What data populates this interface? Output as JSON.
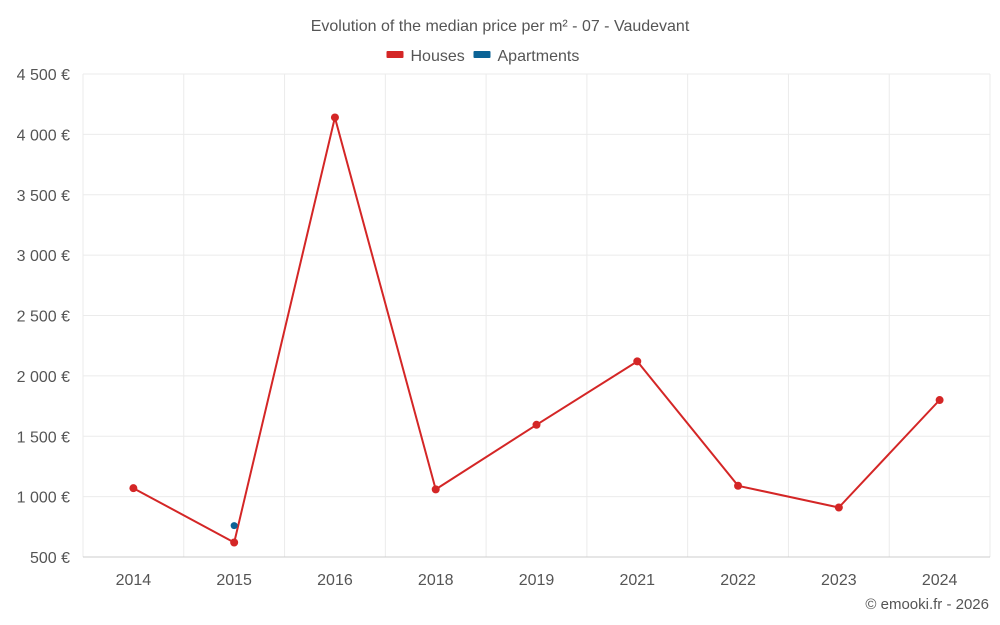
{
  "chart_data": {
    "type": "line",
    "title": "Evolution of the median price per m² - 07 - Vaudevant",
    "categories": [
      "2014",
      "2015",
      "2016",
      "2018",
      "2019",
      "2021",
      "2022",
      "2023",
      "2024"
    ],
    "series": [
      {
        "name": "Houses",
        "color": "#d42626",
        "values": [
          1070,
          620,
          4140,
          1060,
          1595,
          2120,
          1090,
          910,
          1800
        ]
      },
      {
        "name": "Apartments",
        "color": "#0b6396",
        "values": [
          null,
          760,
          null,
          null,
          null,
          null,
          null,
          null,
          null
        ]
      }
    ],
    "ylim": [
      500,
      4500
    ],
    "yticks": [
      500,
      1000,
      1500,
      2000,
      2500,
      3000,
      3500,
      4000,
      4500
    ],
    "ytick_labels": [
      "500 €",
      "1 000 €",
      "1 500 €",
      "2 000 €",
      "2 500 €",
      "3 000 €",
      "3 500 €",
      "4 000 €",
      "4 500 €"
    ],
    "xlabel": "",
    "ylabel": "",
    "grid": true,
    "legend_position": "top-center"
  },
  "credit": "© emooki.fr - 2026"
}
